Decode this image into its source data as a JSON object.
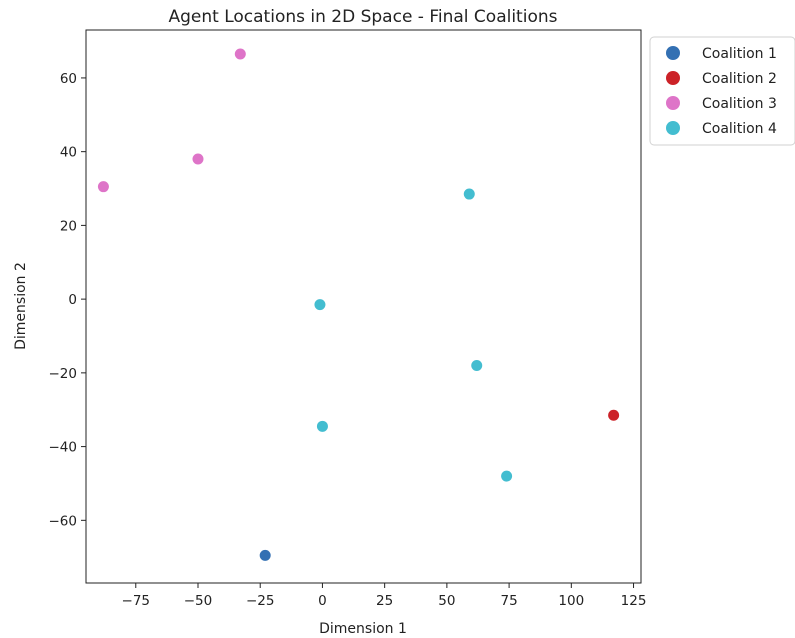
{
  "chart_data": {
    "type": "scatter",
    "title": "Agent Locations in 2D Space - Final Coalitions",
    "xlabel": "Dimension 1",
    "ylabel": "Dimension 2",
    "xlim": [
      -95,
      128
    ],
    "ylim": [
      -77,
      73
    ],
    "xticks": [
      -75,
      -50,
      -25,
      0,
      25,
      50,
      75,
      100,
      125
    ],
    "yticks": [
      -60,
      -40,
      -20,
      0,
      20,
      40,
      60
    ],
    "xtick_labels": [
      "−75",
      "−50",
      "−25",
      "0",
      "25",
      "50",
      "75",
      "100",
      "125"
    ],
    "ytick_labels": [
      "−60",
      "−40",
      "−20",
      "0",
      "20",
      "40",
      "60"
    ],
    "grid": false,
    "legend_position": "outside-right",
    "series": [
      {
        "name": "Coalition 1",
        "color": "#3370b3",
        "points": [
          [
            -23,
            -69.5
          ]
        ]
      },
      {
        "name": "Coalition 2",
        "color": "#cc2228",
        "points": [
          [
            117,
            -31.5
          ]
        ]
      },
      {
        "name": "Coalition 3",
        "color": "#de74c8",
        "points": [
          [
            -88,
            30.5
          ],
          [
            -50,
            38
          ],
          [
            -33,
            66.5
          ]
        ]
      },
      {
        "name": "Coalition 4",
        "color": "#43bdd0",
        "points": [
          [
            59,
            28.5
          ],
          [
            -1,
            -1.5
          ],
          [
            62,
            -18
          ],
          [
            0,
            -34.5
          ],
          [
            74,
            -48
          ]
        ]
      }
    ]
  }
}
